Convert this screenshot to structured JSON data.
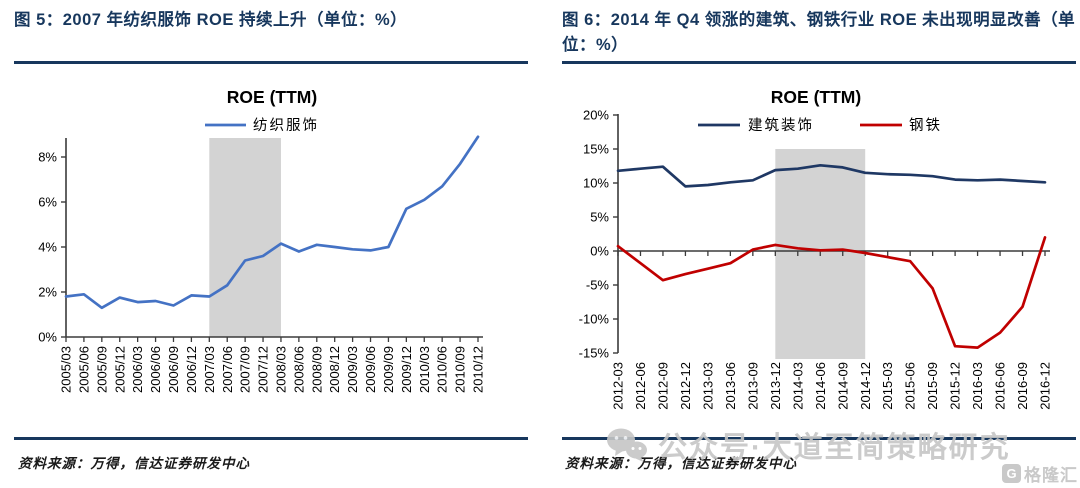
{
  "figures": [
    {
      "caption": "图 5：2007 年纺织服饰 ROE 持续上升（单位：%）",
      "source": "资料来源：万得，信达证券研发中心"
    },
    {
      "caption": "图 6：2014 年 Q4 领涨的建筑、钢铁行业 ROE 未出现明显改善（单位：%）",
      "source": "资料来源：万得，信达证券研发中心"
    }
  ],
  "watermark": {
    "icon": "wechat-icon",
    "text": "公众号·大道至简策略研究"
  },
  "logo": {
    "icon_letter": "G",
    "text": "格隆汇"
  },
  "accent_colors": {
    "navy_rule": "#17375D",
    "textile_line": "#4472C4",
    "construction_line": "#1F3864",
    "steel_line": "#C00000",
    "highlight_band": "#D3D3D3"
  },
  "chart_data": [
    {
      "type": "line",
      "title": "ROE (TTM)",
      "categories": [
        "2005/03",
        "2005/06",
        "2005/09",
        "2005/12",
        "2006/03",
        "2006/06",
        "2006/09",
        "2006/12",
        "2007/03",
        "2007/06",
        "2007/09",
        "2007/12",
        "2008/03",
        "2008/06",
        "2008/09",
        "2008/12",
        "2009/03",
        "2009/06",
        "2009/09",
        "2009/12",
        "2010/03",
        "2010/06",
        "2010/09",
        "2010/12"
      ],
      "series": [
        {
          "name": "纺织服饰",
          "color": "#4472C4",
          "values": [
            1.8,
            1.9,
            1.3,
            1.75,
            1.55,
            1.6,
            1.4,
            1.85,
            1.8,
            2.3,
            3.4,
            3.6,
            4.15,
            3.8,
            4.1,
            4.0,
            3.9,
            3.85,
            4.0,
            5.7,
            6.1,
            6.7,
            7.7,
            8.9
          ]
        }
      ],
      "yticks": {
        "values": [
          0,
          2,
          4,
          6,
          8
        ],
        "labels": [
          "0%",
          "2%",
          "4%",
          "6%",
          "8%"
        ]
      },
      "ylim": [
        0,
        9.0
      ],
      "highlight_band": {
        "from": "2007/03",
        "to": "2008/03"
      },
      "legend_position": "top",
      "grid": false
    },
    {
      "type": "line",
      "title": "ROE (TTM)",
      "categories": [
        "2012-03",
        "2012-06",
        "2012-09",
        "2012-12",
        "2013-03",
        "2013-06",
        "2013-09",
        "2013-12",
        "2014-03",
        "2014-06",
        "2014-09",
        "2014-12",
        "2015-03",
        "2015-06",
        "2015-09",
        "2015-12",
        "2016-03",
        "2016-06",
        "2016-09",
        "2016-12"
      ],
      "series": [
        {
          "name": "建筑装饰",
          "color": "#1F3864",
          "values": [
            11.8,
            12.1,
            12.4,
            9.5,
            9.7,
            10.1,
            10.4,
            11.9,
            12.1,
            12.6,
            12.3,
            11.5,
            11.3,
            11.2,
            11.0,
            10.5,
            10.4,
            10.5,
            10.3,
            10.1
          ]
        },
        {
          "name": "钢铁",
          "color": "#C00000",
          "values": [
            0.7,
            -1.8,
            -4.3,
            -3.4,
            -2.6,
            -1.8,
            0.2,
            0.9,
            0.4,
            0.1,
            0.2,
            -0.3,
            -0.9,
            -1.5,
            -5.5,
            -14.0,
            -14.2,
            -12.0,
            -8.2,
            2.0
          ]
        }
      ],
      "yticks": {
        "values": [
          -15,
          -10,
          -5,
          0,
          5,
          10,
          15,
          20
        ],
        "labels": [
          "-15%",
          "-10%",
          "-5%",
          "0%",
          "5%",
          "10%",
          "15%",
          "20%"
        ]
      },
      "ylim": [
        -15.5,
        20
      ],
      "highlight_band": {
        "from": "2013-12",
        "to": "2014-12"
      },
      "legend_position": "top",
      "grid": false
    }
  ]
}
